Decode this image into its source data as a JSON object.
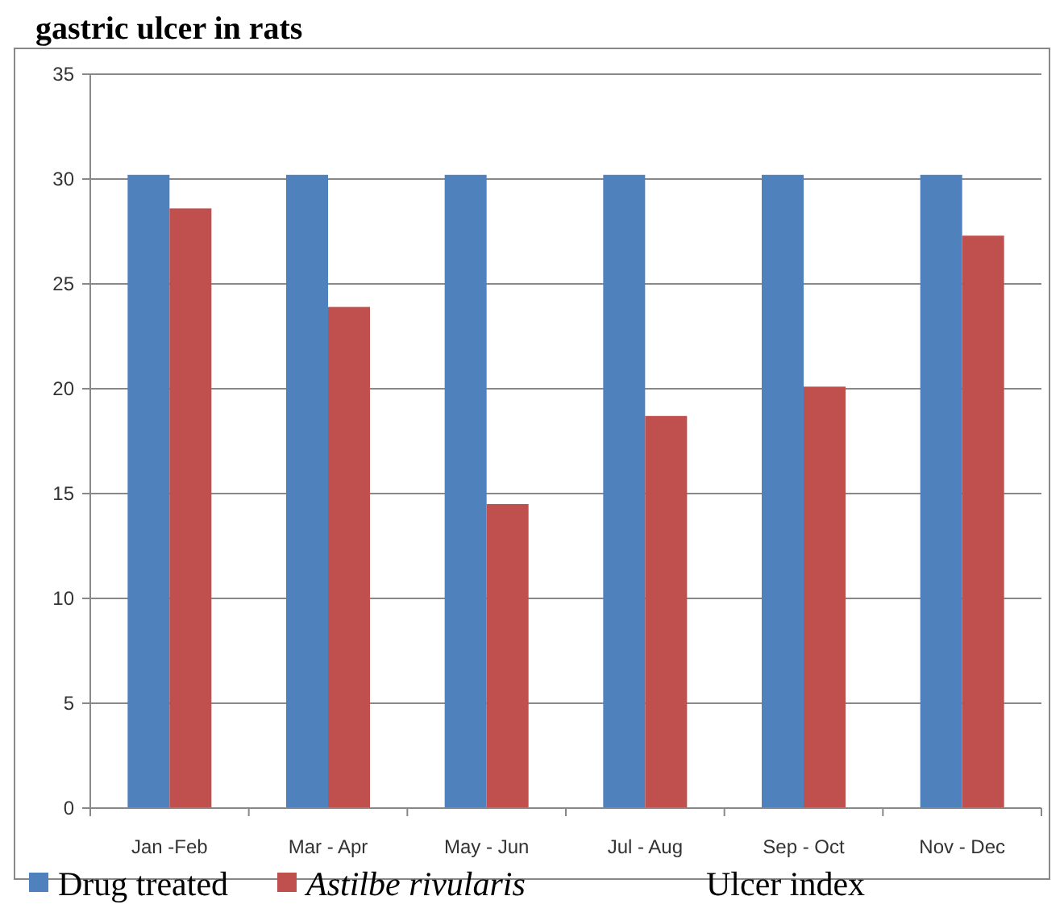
{
  "chart_data": {
    "type": "bar",
    "title": "gastric ulcer in rats",
    "categories": [
      "Jan -Feb",
      "Mar - Apr",
      "May - Jun",
      "Jul - Aug",
      "Sep - Oct",
      "Nov - Dec"
    ],
    "series": [
      {
        "name": "Drug treated",
        "color": "#4f81bd",
        "values": [
          30.2,
          30.2,
          30.2,
          30.2,
          30.2,
          30.2
        ]
      },
      {
        "name": "Astilbe rivularis",
        "color": "#c0504d",
        "values": [
          28.6,
          23.9,
          14.5,
          18.7,
          20.1,
          27.3
        ]
      }
    ],
    "ylim": [
      0,
      35
    ],
    "yticks": [
      0,
      5,
      10,
      15,
      20,
      25,
      30,
      35
    ],
    "grid": "y",
    "legend": "bottom",
    "annotations": [
      "Ulcer index"
    ]
  }
}
